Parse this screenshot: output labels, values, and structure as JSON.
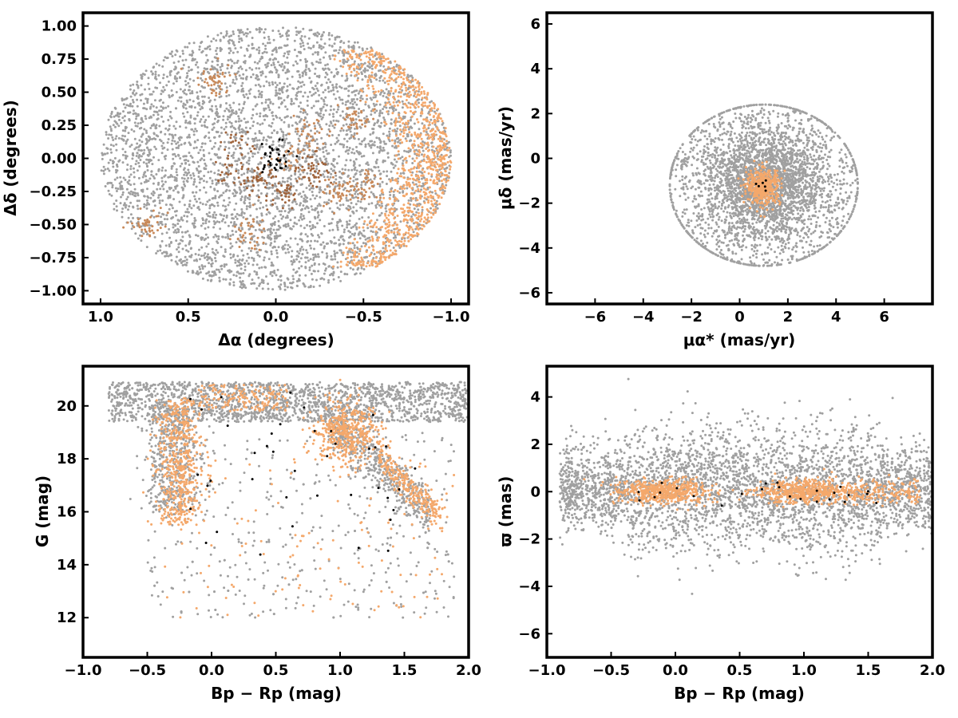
{
  "chart_data": [
    {
      "type": "scatter",
      "id": "sky",
      "xlabel": "Δα (degrees)",
      "ylabel": "Δδ (degrees)",
      "xlim": [
        1.1,
        -1.1
      ],
      "ylim": [
        -1.1,
        1.1
      ],
      "xticks": [
        1.0,
        0.5,
        0.0,
        -0.5,
        -1.0
      ],
      "xtick_labels": [
        "1.0",
        "0.5",
        "0.0",
        "−0.5",
        "−1.0"
      ],
      "yticks": [
        1.0,
        0.75,
        0.5,
        0.25,
        0.0,
        -0.25,
        -0.5,
        -0.75,
        -1.0
      ],
      "ytick_labels": [
        "1.00",
        "0.75",
        "0.50",
        "0.25",
        "0.00",
        "−0.25",
        "−0.50",
        "−0.75",
        "−1.00"
      ],
      "series": [
        {
          "color": "#a0a0a0",
          "pattern": "disk",
          "center": [
            0.0,
            0.0
          ],
          "radius": [
            1.0,
            1.0
          ],
          "count": 4200
        },
        {
          "color": "#f4a86b",
          "pattern": "crescent",
          "center": [
            -0.75,
            0.0
          ],
          "radius": [
            0.25,
            0.75
          ],
          "count": 900
        },
        {
          "color": "#c98a5a",
          "pattern": "clumps",
          "centers": [
            [
              -0.45,
              0.3
            ],
            [
              -0.35,
              -0.25
            ],
            [
              -0.5,
              -0.2
            ],
            [
              -0.2,
              0.2
            ],
            [
              0.15,
              -0.55
            ],
            [
              0.35,
              0.6
            ],
            [
              0.73,
              -0.5
            ],
            [
              -0.1,
              0.0
            ]
          ],
          "count": 320
        },
        {
          "color": "#a0643c",
          "pattern": "clumps",
          "centers": [
            [
              0.1,
              -0.15
            ],
            [
              -0.05,
              -0.25
            ],
            [
              0.25,
              -0.1
            ],
            [
              0.2,
              0.15
            ],
            [
              -0.2,
              -0.1
            ]
          ],
          "count": 170
        },
        {
          "color": "#000000",
          "pattern": "cluster",
          "center": [
            0.0,
            0.0
          ],
          "radius": [
            0.05,
            0.08
          ],
          "count": 35
        }
      ]
    },
    {
      "type": "scatter",
      "id": "proper-motion",
      "xlabel": "μα* (mas/yr)",
      "ylabel": "μδ (mas/yr)",
      "xlim": [
        -8,
        8
      ],
      "ylim": [
        -6.5,
        6.5
      ],
      "xticks": [
        -6,
        -4,
        -2,
        0,
        2,
        4,
        6
      ],
      "xtick_labels": [
        "−6",
        "−4",
        "−2",
        "0",
        "2",
        "4",
        "6"
      ],
      "yticks": [
        6,
        4,
        2,
        0,
        -2,
        -4,
        -6
      ],
      "ytick_labels": [
        "6",
        "4",
        "2",
        "0",
        "−2",
        "−4",
        "−6"
      ],
      "series": [
        {
          "color": "#a0a0a0",
          "pattern": "gauss-disk",
          "center": [
            1.0,
            -1.2
          ],
          "radius": [
            3.9,
            3.6
          ],
          "count": 3600
        },
        {
          "color": "#f4a86b",
          "pattern": "cluster",
          "center": [
            1.0,
            -1.25
          ],
          "radius": [
            0.35,
            0.4
          ],
          "count": 420
        },
        {
          "color": "#000000",
          "pattern": "cluster",
          "center": [
            0.9,
            -1.2
          ],
          "radius": [
            0.1,
            0.1
          ],
          "count": 6
        }
      ]
    },
    {
      "type": "scatter",
      "id": "cmd",
      "xlabel": "Bp − Rp (mag)",
      "ylabel": "G (mag)",
      "xlim": [
        -1.0,
        2.0
      ],
      "ylim": [
        10.5,
        21.5
      ],
      "y_inverted": false,
      "xticks": [
        -1.0,
        -0.5,
        0.0,
        0.5,
        1.0,
        1.5,
        2.0
      ],
      "xtick_labels": [
        "−1.0",
        "−0.5",
        "0.0",
        "0.5",
        "1.0",
        "1.5",
        "2.0"
      ],
      "yticks": [
        20,
        18,
        16,
        14,
        12
      ],
      "ytick_labels": [
        "20",
        "18",
        "16",
        "14",
        "12"
      ],
      "series": [
        {
          "color": "#a0a0a0",
          "pattern": "cmd",
          "count": 3400
        },
        {
          "color": "#f4a86b",
          "pattern": "cmd-members",
          "count": 1500
        },
        {
          "color": "#000000",
          "pattern": "cmd-sparse",
          "count": 40
        }
      ]
    },
    {
      "type": "scatter",
      "id": "parallax",
      "xlabel": "Bp − Rp (mag)",
      "ylabel": "ϖ (mas)",
      "xlim": [
        -1.0,
        2.0
      ],
      "ylim": [
        -7,
        5.3
      ],
      "xticks": [
        -1.0,
        -0.5,
        0.0,
        0.5,
        1.0,
        1.5,
        2.0
      ],
      "xtick_labels": [
        "−1.0",
        "−0.5",
        "0.0",
        "0.5",
        "1.0",
        "1.5",
        "2.0"
      ],
      "yticks": [
        4,
        2,
        0,
        -2,
        -4,
        -6
      ],
      "ytick_labels": [
        "4",
        "2",
        "0",
        "−2",
        "−4",
        "−6"
      ],
      "series": [
        {
          "color": "#a0a0a0",
          "pattern": "plx",
          "count": 3600
        },
        {
          "color": "#f4a86b",
          "pattern": "plx-members",
          "count": 1200
        },
        {
          "color": "#000000",
          "pattern": "plx-sparse",
          "count": 25
        }
      ]
    }
  ]
}
